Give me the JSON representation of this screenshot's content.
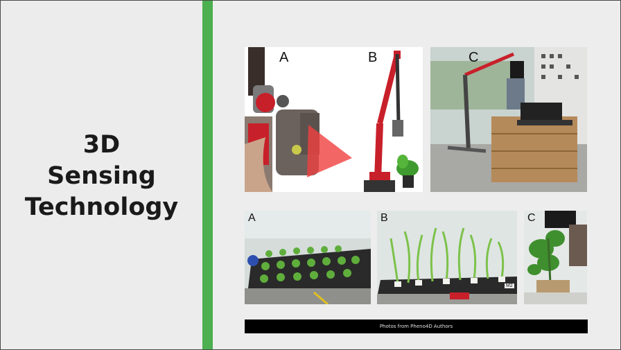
{
  "slide": {
    "title_lines": [
      "3D",
      "Sensing",
      "Technology"
    ],
    "caption": "Photos from Pheno4D Authors"
  },
  "photos_top": [
    {
      "label": "A"
    },
    {
      "label": "B"
    },
    {
      "label": "C"
    }
  ],
  "photos_bottom": [
    {
      "label": "A"
    },
    {
      "label": "B",
      "tag": "M2"
    },
    {
      "label": "C"
    }
  ],
  "colors": {
    "accent": "#4caf50",
    "arm_red": "#c8202a",
    "laser": "#f04040"
  }
}
